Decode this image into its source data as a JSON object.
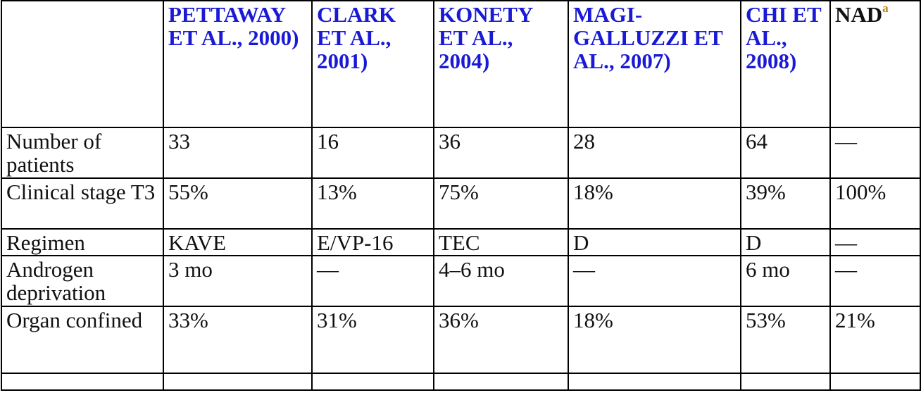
{
  "header": {
    "blank": "",
    "columns": [
      "PETTAWAY ET AL., 2000)",
      "CLARK ET AL., 2001)",
      "KONETY ET AL., 2004)",
      "MAGI-GALLUZZI ET AL., 2007)",
      "CHI ET AL., 2008)"
    ],
    "nad": "NAD",
    "nad_sup": "a"
  },
  "rows": [
    {
      "label": "Number of patients",
      "cells": [
        "33",
        "16",
        "36",
        "28",
        "64",
        "—"
      ]
    },
    {
      "label": "Clinical stage T3",
      "cells": [
        "55%",
        "13%",
        "75%",
        "18%",
        "39%",
        "100%"
      ]
    },
    {
      "label": "Regimen",
      "cells": [
        "KAVE",
        "E/VP-16",
        "TEC",
        "D",
        "D",
        "—"
      ]
    },
    {
      "label": "Androgen deprivation",
      "cells": [
        "3 mo",
        "—",
        "4–6 mo",
        "—",
        "6 mo",
        "—"
      ]
    },
    {
      "label": "Organ confined",
      "cells": [
        "33%",
        "31%",
        "36%",
        "18%",
        "53%",
        "21%"
      ]
    },
    {
      "label": "",
      "cells": [
        "",
        "",
        "",
        "",
        "",
        ""
      ]
    }
  ],
  "colors": {
    "link": "#1a1ad6",
    "text": "#111111",
    "footnote": "#b8860b"
  }
}
